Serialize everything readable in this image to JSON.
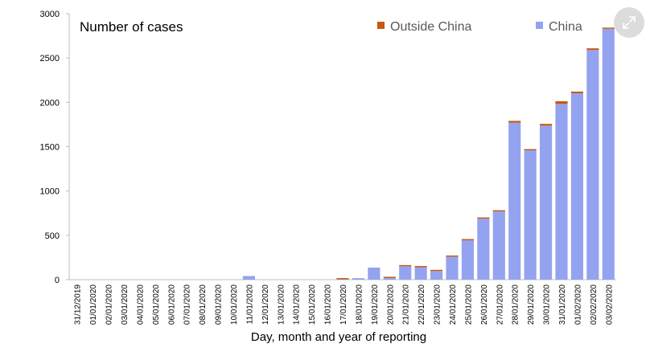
{
  "chart_data": {
    "type": "bar",
    "stacked": true,
    "title": "Number of cases",
    "xlabel": "Day, month and year of reporting",
    "ylabel": "",
    "ylim": [
      0,
      3000
    ],
    "yticks": [
      0,
      500,
      1000,
      1500,
      2000,
      2500,
      3000
    ],
    "grid": false,
    "legend_position": "top-right",
    "categories": [
      "31/12/2019",
      "01/01/2020",
      "02/01/2020",
      "03/01/2020",
      "04/01/2020",
      "05/01/2020",
      "06/01/2020",
      "07/01/2020",
      "08/01/2020",
      "09/01/2020",
      "10/01/2020",
      "11/01/2020",
      "12/01/2020",
      "13/01/2020",
      "14/01/2020",
      "15/01/2020",
      "16/01/2020",
      "17/01/2020",
      "18/01/2020",
      "19/01/2020",
      "20/01/2020",
      "21/01/2020",
      "22/01/2020",
      "23/01/2020",
      "24/01/2020",
      "25/01/2020",
      "26/01/2020",
      "27/01/2020",
      "28/01/2020",
      "29/01/2020",
      "30/01/2020",
      "31/01/2020",
      "01/02/2020",
      "02/02/2020",
      "03/02/2020"
    ],
    "series": [
      {
        "name": "China",
        "color": "#94a3f0",
        "values": [
          0,
          0,
          0,
          0,
          0,
          0,
          0,
          0,
          0,
          0,
          0,
          41,
          0,
          0,
          0,
          0,
          0,
          4,
          17,
          136,
          19,
          151,
          140,
          97,
          259,
          444,
          688,
          769,
          1771,
          1459,
          1737,
          1982,
          2102,
          2590,
          2829
        ]
      },
      {
        "name": "Outside China",
        "color": "#c55a11",
        "values": [
          0,
          0,
          0,
          0,
          0,
          0,
          0,
          0,
          0,
          0,
          0,
          0,
          0,
          0,
          0,
          0,
          0,
          3,
          0,
          0,
          1,
          5,
          3,
          3,
          8,
          9,
          9,
          14,
          20,
          12,
          20,
          30,
          19,
          19,
          10
        ]
      }
    ],
    "legend": [
      {
        "label": "Outside China",
        "color": "#c55a11"
      },
      {
        "label": "China",
        "color": "#94a3f0"
      }
    ]
  },
  "controls": {
    "expand_icon": "expand-icon"
  }
}
